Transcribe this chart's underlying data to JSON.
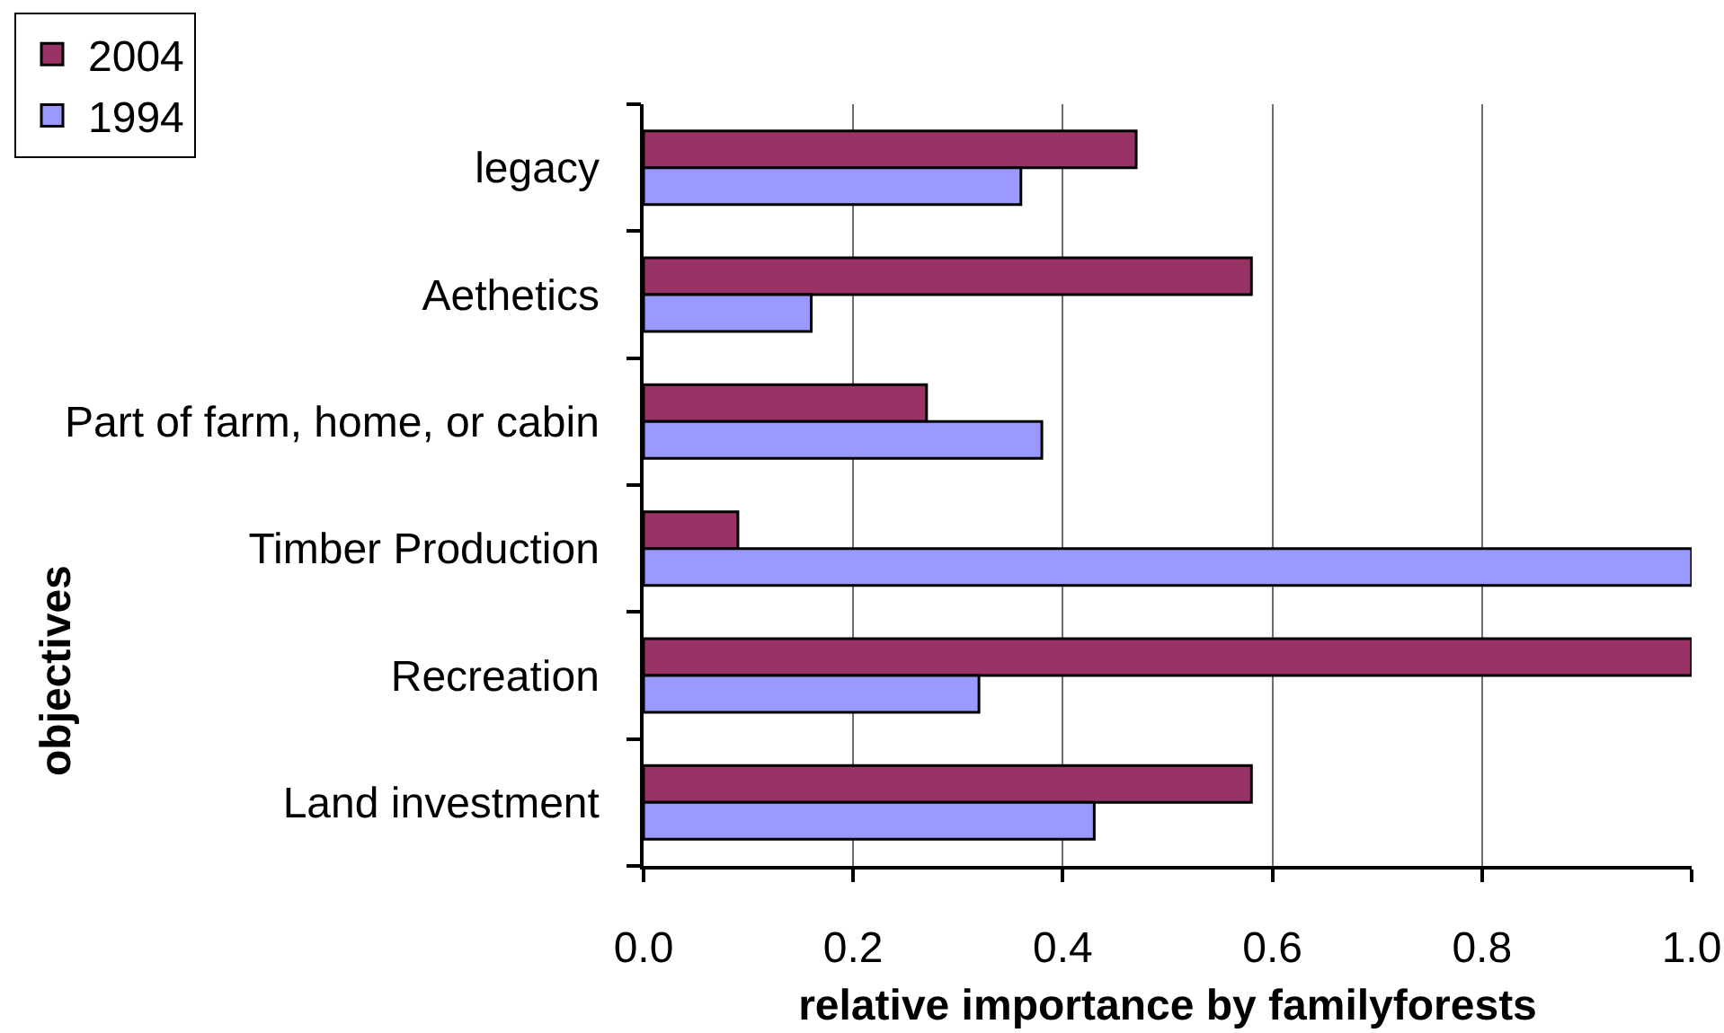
{
  "chart_data": {
    "type": "bar",
    "orientation": "horizontal",
    "categories": [
      "legacy",
      "Aethetics",
      "Part of farm, home, or cabin",
      "Timber Production",
      "Recreation",
      "Land investment"
    ],
    "series": [
      {
        "name": "2004",
        "color": "#993366",
        "values": [
          0.47,
          0.58,
          0.27,
          0.09,
          1.0,
          0.58
        ]
      },
      {
        "name": "1994",
        "color": "#9999ff",
        "values": [
          0.36,
          0.16,
          0.38,
          1.0,
          0.32,
          0.43
        ]
      }
    ],
    "xlim": [
      0,
      1
    ],
    "xticks": [
      {
        "value": 0,
        "label": "0.0"
      },
      {
        "value": 0.2,
        "label": "0.2"
      },
      {
        "value": 0.4,
        "label": "0.4"
      },
      {
        "value": 0.6,
        "label": "0.6"
      },
      {
        "value": 0.8,
        "label": "0.8"
      },
      {
        "value": 1,
        "label": "1.0"
      }
    ],
    "xlabel": "relative importance by familyforests",
    "ylabel": "objectives",
    "grid": "x",
    "legend": "top left"
  }
}
